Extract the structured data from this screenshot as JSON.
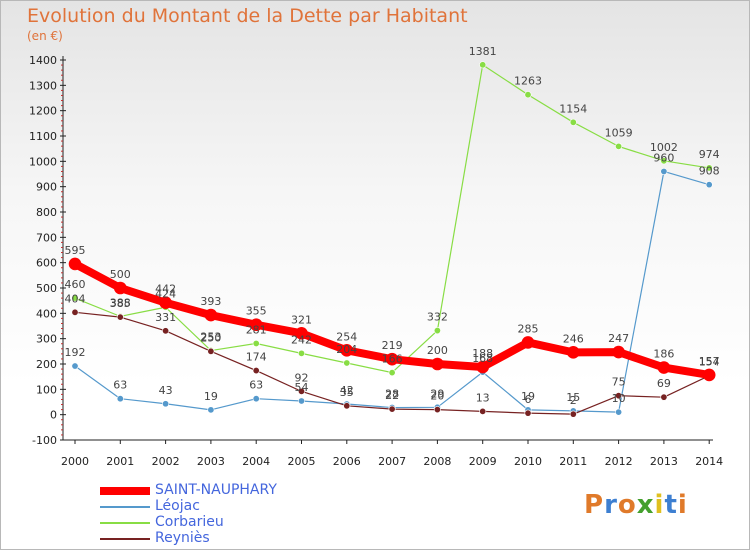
{
  "title": "Evolution du Montant de la Dette par Habitant",
  "unit_label": "(en €)",
  "logo": {
    "text": "Proxiti",
    "colors": [
      "#e07a2a",
      "#3d7fd1",
      "#e07a2a",
      "#44a02d",
      "#e0c020",
      "#3d7fd1",
      "#e07a2a"
    ]
  },
  "chart_data": {
    "type": "line",
    "title": "Evolution du Montant de la Dette par Habitant",
    "ylabel": "(en €)",
    "xlabel": "",
    "x": [
      "2000",
      "2001",
      "2002",
      "2003",
      "2004",
      "2005",
      "2006",
      "2007",
      "2008",
      "2009",
      "2010",
      "2011",
      "2012",
      "2013",
      "2014"
    ],
    "ylim": [
      -100,
      1400
    ],
    "yticks": [
      -100,
      0,
      100,
      200,
      300,
      400,
      500,
      600,
      700,
      800,
      900,
      1000,
      1100,
      1200,
      1300,
      1400
    ],
    "grid": false,
    "legend_position": "bottom-left",
    "series": [
      {
        "name": "SAINT-NAUPHARY",
        "color": "#ff0000",
        "values": [
          595,
          500,
          442,
          393,
          355,
          321,
          254,
          219,
          200,
          188,
          285,
          246,
          247,
          186,
          157
        ]
      },
      {
        "name": "Léojac",
        "color": "#5599cc",
        "values": [
          192,
          63,
          43,
          19,
          63,
          54,
          42,
          28,
          29,
          168,
          19,
          15,
          10,
          960,
          908
        ]
      },
      {
        "name": "Corbarieu",
        "color": "#88dd44",
        "values": [
          460,
          388,
          424,
          253,
          281,
          242,
          204,
          166,
          332,
          1381,
          1263,
          1154,
          1059,
          1002,
          974
        ]
      },
      {
        "name": "Reyniès",
        "color": "#772222",
        "values": [
          404,
          385,
          331,
          250,
          174,
          92,
          35,
          22,
          20,
          13,
          6,
          2,
          75,
          69,
          154
        ]
      }
    ]
  }
}
